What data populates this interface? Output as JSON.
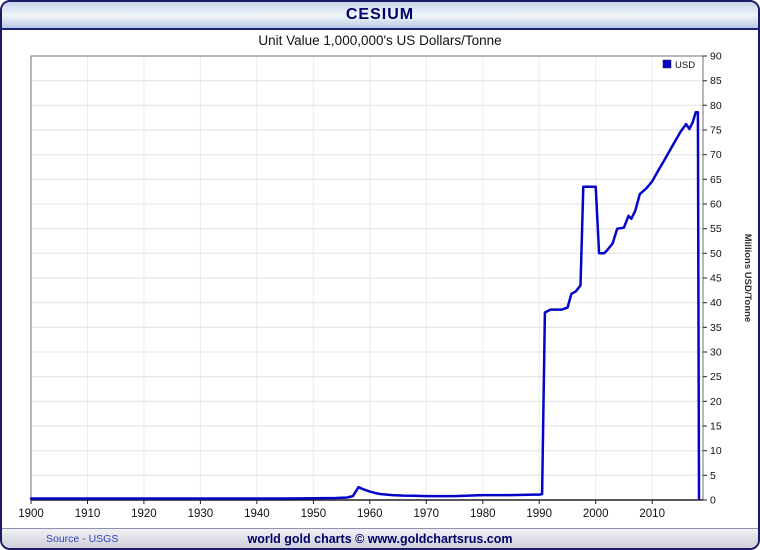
{
  "window": {
    "title": "CESIUM"
  },
  "chart": {
    "title": "Unit Value 1,000,000's US Dollars/Tonne",
    "y_axis_title": "Millions USD/Tonne",
    "legend": [
      {
        "label": "USD",
        "color": "#0404c8"
      }
    ]
  },
  "footer": {
    "source": "Source - USGS",
    "credit": "world gold charts © www.goldchartsrus.com"
  },
  "colors": {
    "line": "#0404c8",
    "grid_h": "#e0e0e6",
    "grid_v": "#ebebf0",
    "plot_border": "#707070",
    "axis": "#222222",
    "tick_label": "#111111"
  },
  "chart_data": {
    "type": "line",
    "title": "Unit Value 1,000,000's US Dollars/Tonne",
    "xlabel": "",
    "ylabel": "Millions USD/Tonne",
    "xlim": [
      1900,
      2019
    ],
    "ylim": [
      0,
      90
    ],
    "x_ticks": [
      1900,
      1910,
      1920,
      1930,
      1940,
      1950,
      1960,
      1970,
      1980,
      1990,
      2000,
      2010
    ],
    "y_tick_step": 5,
    "grid": true,
    "legend_position": "top-right",
    "series": [
      {
        "name": "USD",
        "color": "#0404c8",
        "points": [
          [
            1900,
            0.3
          ],
          [
            1945,
            0.3
          ],
          [
            1950,
            0.35
          ],
          [
            1954,
            0.4
          ],
          [
            1956,
            0.5
          ],
          [
            1957,
            0.8
          ],
          [
            1958,
            2.6
          ],
          [
            1959,
            2.1
          ],
          [
            1960,
            1.7
          ],
          [
            1961,
            1.4
          ],
          [
            1962,
            1.2
          ],
          [
            1964,
            1.0
          ],
          [
            1966,
            0.9
          ],
          [
            1968,
            0.85
          ],
          [
            1970,
            0.8
          ],
          [
            1975,
            0.8
          ],
          [
            1980,
            1.0
          ],
          [
            1985,
            1.0
          ],
          [
            1989,
            1.1
          ],
          [
            1990,
            1.1
          ],
          [
            1990.5,
            1.2
          ],
          [
            1991,
            38.0
          ],
          [
            1992,
            38.6
          ],
          [
            1994,
            38.6
          ],
          [
            1995,
            39.0
          ],
          [
            1995.7,
            41.8
          ],
          [
            1996.5,
            42.3
          ],
          [
            1997.3,
            43.5
          ],
          [
            1997.8,
            63.5
          ],
          [
            2000,
            63.5
          ],
          [
            2000.6,
            50.0
          ],
          [
            2001.5,
            50.0
          ],
          [
            2002,
            50.6
          ],
          [
            2003,
            52.0
          ],
          [
            2003.8,
            55.0
          ],
          [
            2005,
            55.2
          ],
          [
            2005.8,
            57.6
          ],
          [
            2006.3,
            57.0
          ],
          [
            2007,
            58.6
          ],
          [
            2007.8,
            62.0
          ],
          [
            2009,
            63.2
          ],
          [
            2010,
            64.6
          ],
          [
            2011,
            66.6
          ],
          [
            2012,
            68.6
          ],
          [
            2013,
            70.6
          ],
          [
            2014,
            72.6
          ],
          [
            2015,
            74.6
          ],
          [
            2016,
            76.2
          ],
          [
            2016.6,
            75.2
          ],
          [
            2017.2,
            76.6
          ],
          [
            2017.7,
            78.6
          ],
          [
            2018.1,
            78.6
          ],
          [
            2018.3,
            0.3
          ]
        ]
      }
    ]
  }
}
